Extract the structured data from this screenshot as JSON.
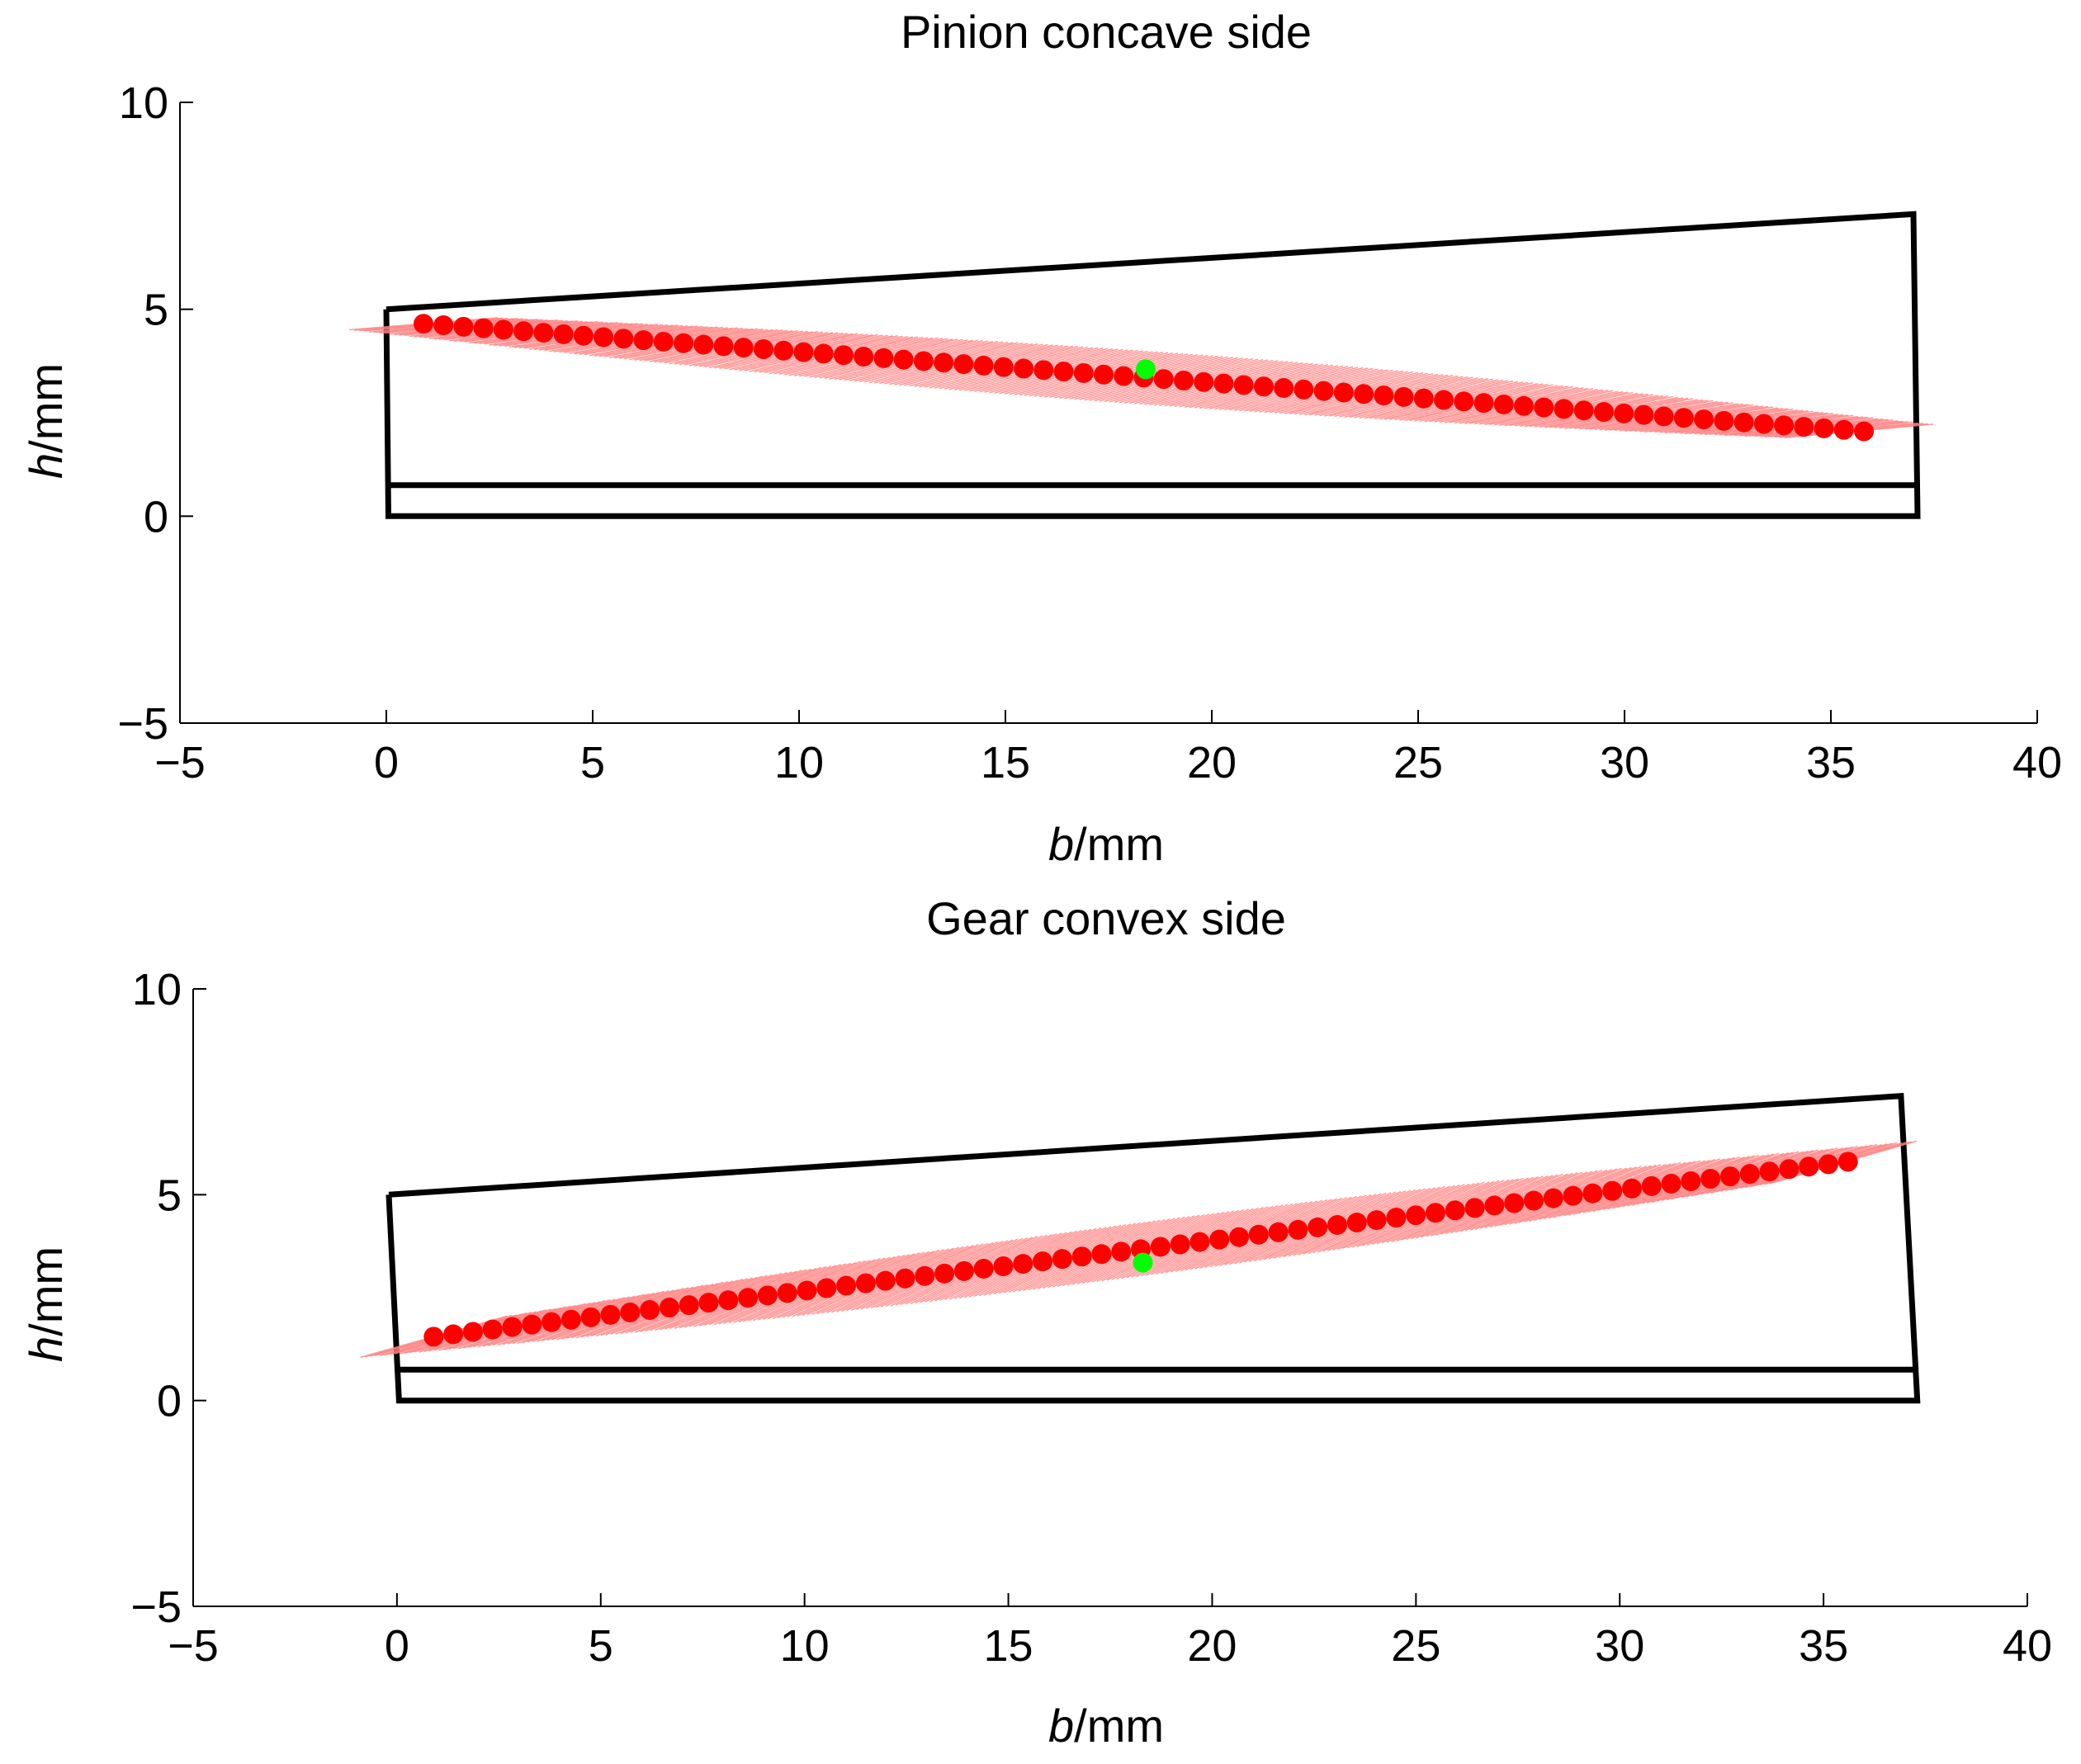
{
  "colors": {
    "axis": "#000000",
    "outline": "#000000",
    "contact_point": "#ff0000",
    "ellipse": "#ff8080",
    "center_point": "#00ff00"
  },
  "chart_data": [
    {
      "type": "scatter",
      "title": "Pinion concave side",
      "xlabel_italic": "b",
      "xlabel_unit": "/mm",
      "ylabel_italic": "h",
      "ylabel_unit": "/mm",
      "xlim": [
        -5,
        40
      ],
      "ylim": [
        -5,
        10
      ],
      "xticks": [
        -5,
        0,
        5,
        10,
        15,
        20,
        25,
        30,
        35,
        40
      ],
      "yticks": [
        -5,
        0,
        5,
        10
      ],
      "xtick_labels": [
        "−5",
        "0",
        "5",
        "10",
        "15",
        "20",
        "25",
        "30",
        "35",
        "40"
      ],
      "ytick_labels": [
        "−5",
        "0",
        "5",
        "10"
      ],
      "grid": false,
      "tooth_outline": [
        [
          0,
          5.0
        ],
        [
          37,
          7.3
        ],
        [
          37.1,
          0
        ],
        [
          0.05,
          0
        ],
        [
          0,
          5.0
        ]
      ],
      "root_line": [
        [
          0.05,
          0.75
        ],
        [
          37.05,
          0.75
        ]
      ],
      "contact_path": {
        "b_start": 0.9,
        "h_start": 4.65,
        "b_end": 35.8,
        "h_end": 2.05,
        "count": 73,
        "bow": 0
      },
      "contact_ellipse_half_width": 0.65,
      "center_point": [
        18.4,
        3.55
      ]
    },
    {
      "type": "scatter",
      "title": "Gear convex side",
      "xlabel_italic": "b",
      "xlabel_unit": "/mm",
      "ylabel_italic": "h",
      "ylabel_unit": "/mm",
      "xlim": [
        -5,
        40
      ],
      "ylim": [
        -5,
        10
      ],
      "xticks": [
        -5,
        0,
        5,
        10,
        15,
        20,
        25,
        30,
        35,
        40
      ],
      "yticks": [
        -5,
        0,
        5,
        10
      ],
      "xtick_labels": [
        "−5",
        "0",
        "5",
        "10",
        "15",
        "20",
        "25",
        "30",
        "35",
        "40"
      ],
      "ytick_labels": [
        "−5",
        "0",
        "5",
        "10"
      ],
      "grid": false,
      "tooth_outline": [
        [
          -0.2,
          5.0
        ],
        [
          36.9,
          7.4
        ],
        [
          37.3,
          0
        ],
        [
          0.05,
          0
        ],
        [
          -0.2,
          5.0
        ]
      ],
      "root_line": [
        [
          0.05,
          0.75
        ],
        [
          37.2,
          0.75
        ]
      ],
      "contact_path": {
        "b_start": 0.9,
        "h_start": 1.55,
        "b_end": 35.6,
        "h_end": 5.8,
        "count": 73,
        "bow": 0
      },
      "contact_ellipse_half_width": 0.65,
      "center_point": [
        18.3,
        3.35
      ]
    }
  ]
}
